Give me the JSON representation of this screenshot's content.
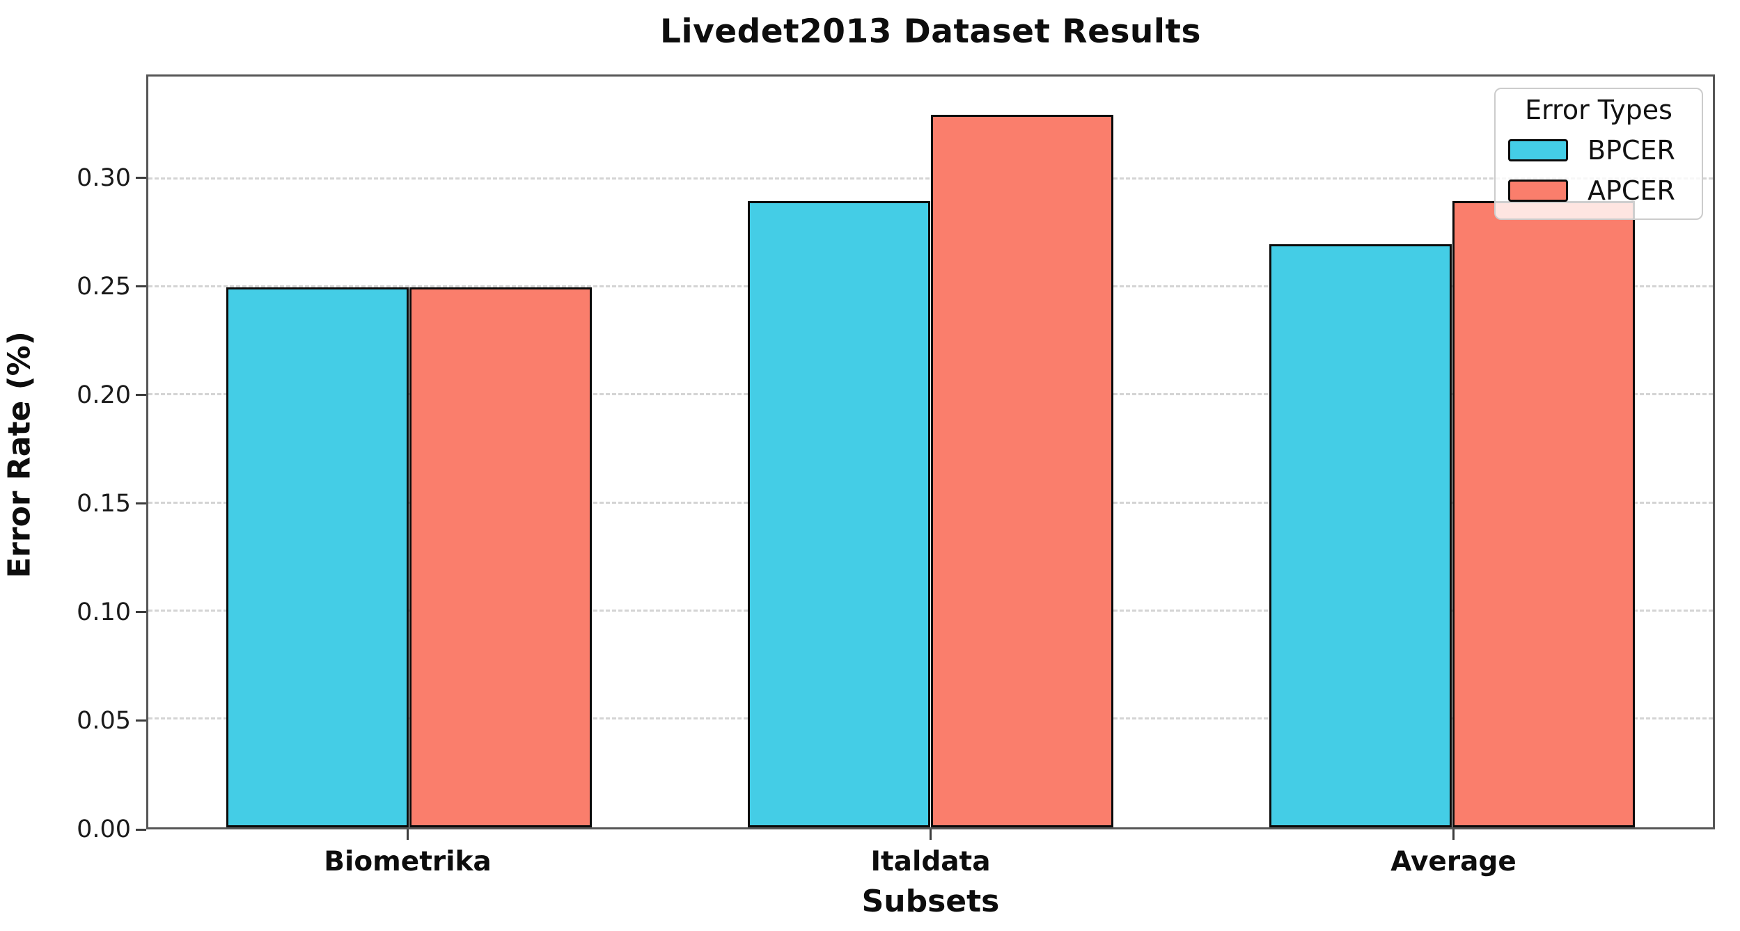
{
  "chart_data": {
    "type": "bar",
    "title": "Livedet2013 Dataset Results",
    "xlabel": "Subsets",
    "ylabel": "Error Rate (%)",
    "categories": [
      "Biometrika",
      "Italdata",
      "Average"
    ],
    "series": [
      {
        "name": "BPCER",
        "color": "#44cde6",
        "values": [
          0.25,
          0.29,
          0.27
        ]
      },
      {
        "name": "APCER",
        "color": "#fa7e6c",
        "values": [
          0.25,
          0.33,
          0.29
        ]
      }
    ],
    "legend": {
      "title": "Error Types",
      "position": "upper-right"
    },
    "yticks": [
      0.0,
      0.05,
      0.1,
      0.15,
      0.2,
      0.25,
      0.3
    ],
    "ytick_labels": [
      "0.00",
      "0.05",
      "0.10",
      "0.15",
      "0.20",
      "0.25",
      "0.30"
    ],
    "ylim": [
      0,
      0.3477
    ],
    "grid": true,
    "grid_axis": "y",
    "grid_style": "dashed",
    "bar_edge_color": "#0b0b0b",
    "spine_color": "#565656",
    "grid_color": "#d4d4d4"
  }
}
